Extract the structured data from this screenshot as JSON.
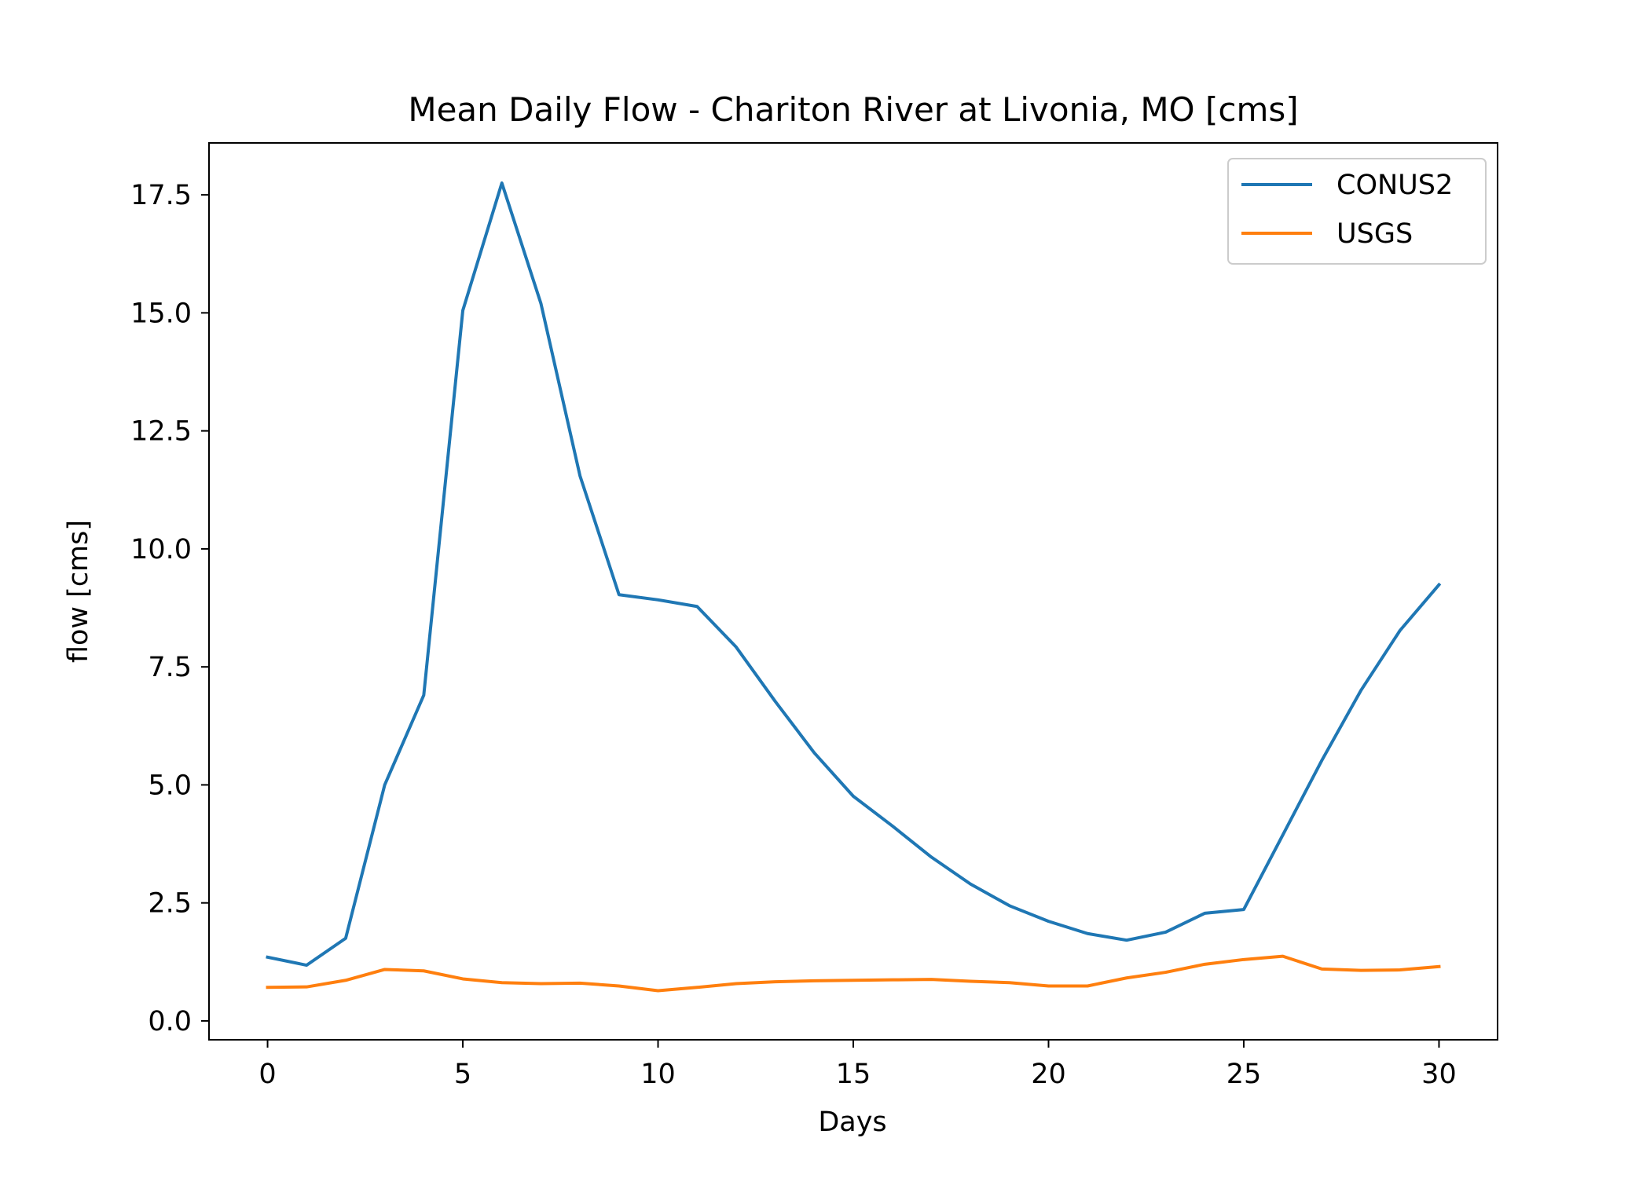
{
  "chart_data": {
    "type": "line",
    "title": "Mean Daily Flow - Chariton River at Livonia, MO [cms]",
    "xlabel": "Days",
    "ylabel": "flow [cms]",
    "xlim": [
      -1.5,
      31.5
    ],
    "ylim": [
      -0.4,
      18.6
    ],
    "xticks": [
      0,
      5,
      10,
      15,
      20,
      25,
      30
    ],
    "yticks": [
      0.0,
      2.5,
      5.0,
      7.5,
      10.0,
      12.5,
      15.0,
      17.5
    ],
    "xtick_labels": [
      "0",
      "5",
      "10",
      "15",
      "20",
      "25",
      "30"
    ],
    "ytick_labels": [
      "0.0",
      "2.5",
      "5.0",
      "7.5",
      "10.0",
      "12.5",
      "15.0",
      "17.5"
    ],
    "grid": false,
    "legend_position": "top-right",
    "x": [
      0,
      1,
      2,
      3,
      4,
      5,
      6,
      7,
      8,
      9,
      10,
      11,
      12,
      13,
      14,
      15,
      16,
      17,
      18,
      19,
      20,
      21,
      22,
      23,
      24,
      25,
      26,
      27,
      28,
      29,
      30
    ],
    "series": [
      {
        "name": "CONUS2",
        "color": "#1f77b4",
        "values": [
          1.35,
          1.18,
          1.75,
          5.0,
          6.9,
          15.05,
          17.75,
          15.2,
          11.55,
          9.03,
          8.92,
          8.78,
          7.92,
          6.77,
          5.68,
          4.76,
          4.13,
          3.47,
          2.9,
          2.44,
          2.11,
          1.85,
          1.71,
          1.88,
          2.28,
          2.36,
          3.94,
          5.52,
          7.0,
          8.27,
          9.24
        ]
      },
      {
        "name": "USGS",
        "color": "#ff7f0e",
        "values": [
          0.71,
          0.72,
          0.86,
          1.09,
          1.06,
          0.89,
          0.81,
          0.79,
          0.8,
          0.74,
          0.64,
          0.71,
          0.79,
          0.83,
          0.85,
          0.86,
          0.87,
          0.88,
          0.84,
          0.81,
          0.74,
          0.74,
          0.91,
          1.03,
          1.2,
          1.3,
          1.37,
          1.1,
          1.07,
          1.08,
          1.15
        ]
      }
    ]
  }
}
